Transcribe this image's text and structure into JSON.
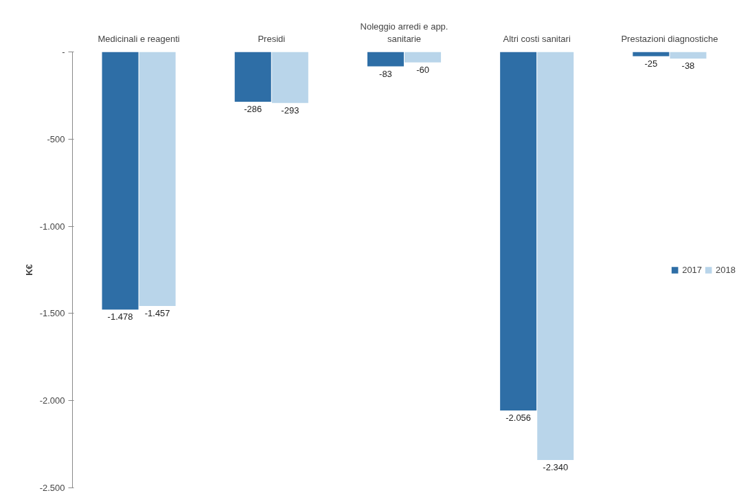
{
  "chart_data": {
    "type": "bar",
    "ylabel": "K€",
    "categories": [
      "Medicinali e reagenti",
      "Presidi",
      "Noleggio arredi e app. sanitarie",
      "Altri costi sanitari",
      "Prestazioni diagnostiche"
    ],
    "series": [
      {
        "name": "2017",
        "color": "#2e6ea6",
        "values": [
          -1478,
          -286,
          -83,
          -2056,
          -25
        ],
        "value_labels": [
          "-1.478",
          "-286",
          "-83",
          "-2.056",
          "-25"
        ]
      },
      {
        "name": "2018",
        "color": "#b9d5ea",
        "values": [
          -1457,
          -293,
          -60,
          -2340,
          -38
        ],
        "value_labels": [
          "-1.457",
          "-293",
          "-60",
          "-2.340",
          "-38"
        ]
      }
    ],
    "ylim": [
      -2500,
      0
    ],
    "yticks": [
      {
        "value": 0,
        "label": "-"
      },
      {
        "value": -500,
        "label": "-500"
      },
      {
        "value": -1000,
        "label": "-1.000"
      },
      {
        "value": -1500,
        "label": "-1.500"
      },
      {
        "value": -2000,
        "label": "-2.000"
      },
      {
        "value": -2500,
        "label": "-2.500"
      }
    ],
    "legend": "right"
  }
}
